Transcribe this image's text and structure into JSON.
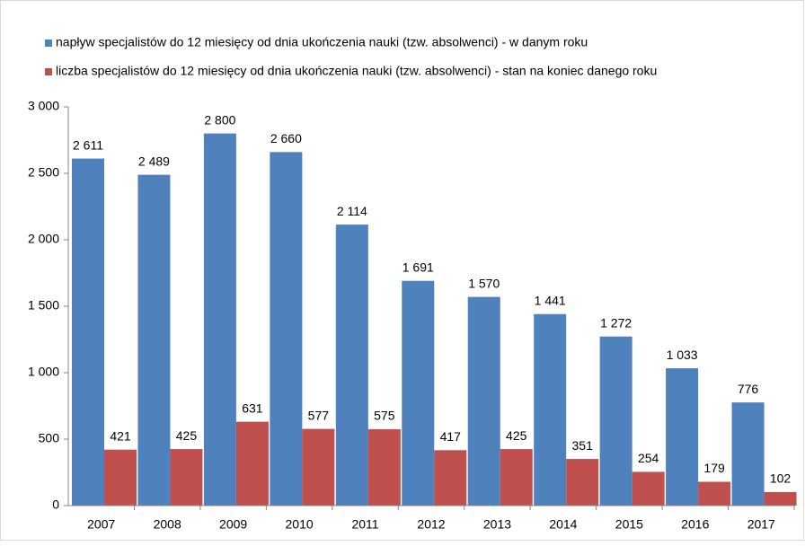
{
  "chart_data": {
    "type": "bar",
    "categories": [
      "2007",
      "2008",
      "2009",
      "2010",
      "2011",
      "2012",
      "2013",
      "2014",
      "2015",
      "2016",
      "2017"
    ],
    "series": [
      {
        "name": "napływ specjalistów do 12 miesięcy od dnia ukończenia nauki (tzw. absolwenci) - w danym roku",
        "color": "#4f81bd",
        "values": [
          2611,
          2489,
          2800,
          2660,
          2114,
          1691,
          1570,
          1441,
          1272,
          1033,
          776
        ],
        "value_labels": [
          "2 611",
          "2 489",
          "2 800",
          "2 660",
          "2 114",
          "1 691",
          "1 570",
          "1 441",
          "1 272",
          "1 033",
          "776"
        ]
      },
      {
        "name": "liczba specjalistów do 12 miesięcy od dnia ukończenia nauki (tzw. absolwenci) - stan na koniec danego roku",
        "color": "#c0504d",
        "values": [
          421,
          425,
          631,
          577,
          575,
          417,
          425,
          351,
          254,
          179,
          102
        ],
        "value_labels": [
          "421",
          "425",
          "631",
          "577",
          "575",
          "417",
          "425",
          "351",
          "254",
          "179",
          "102"
        ]
      }
    ],
    "ylim": [
      0,
      3000
    ],
    "yticks": [
      {
        "value": 0,
        "label": "0"
      },
      {
        "value": 500,
        "label": "500"
      },
      {
        "value": 1000,
        "label": "1 000"
      },
      {
        "value": 1500,
        "label": "1 500"
      },
      {
        "value": 2000,
        "label": "2 000"
      },
      {
        "value": 2500,
        "label": "2 500"
      },
      {
        "value": 3000,
        "label": "3 000"
      }
    ],
    "legend": "top"
  }
}
